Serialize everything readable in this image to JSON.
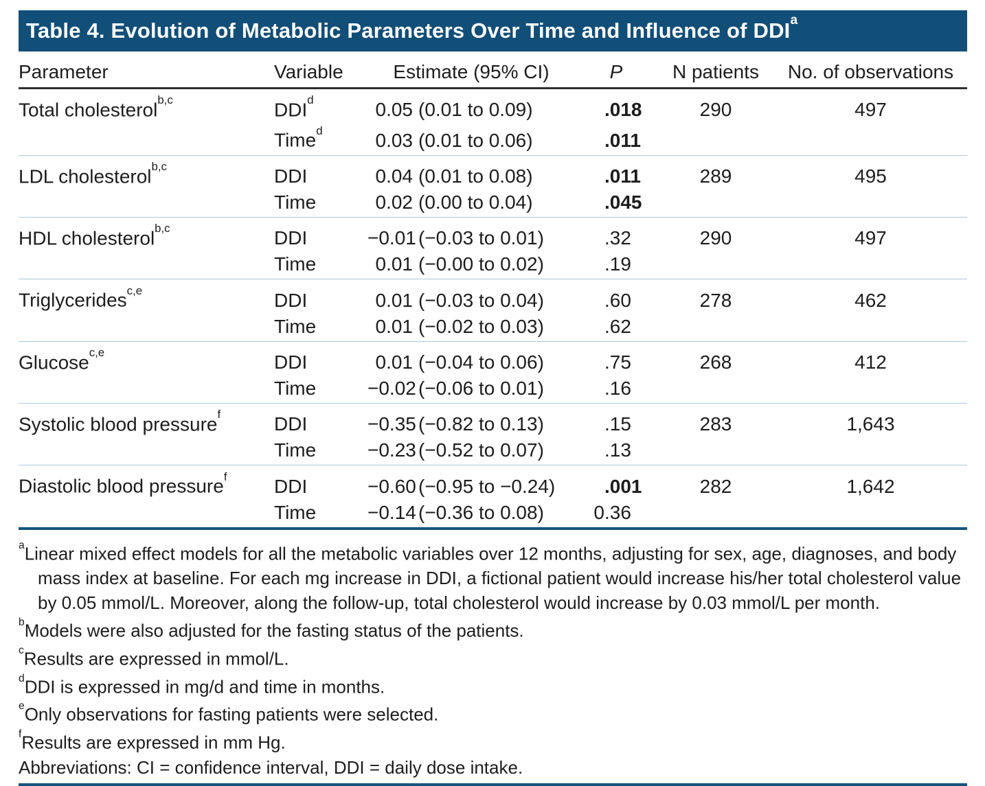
{
  "title": {
    "text": "Table 4. Evolution of Metabolic Parameters Over Time and Influence of DDI",
    "sup": "a"
  },
  "columns": {
    "parameter": "Parameter",
    "variable": "Variable",
    "estimate": "Estimate (95% CI)",
    "p": "P",
    "n_patients": "N patients",
    "observations": "No. of observations"
  },
  "table": {
    "groups": [
      {
        "parameter": "Total cholesterol",
        "parameter_sup": "b,c",
        "n_patients": "290",
        "n_observations": "497",
        "rows": [
          {
            "variable": "DDI",
            "variable_sup": "d",
            "est_value": "0.05",
            "est_ci": "(0.01 to 0.09)",
            "p_int": "",
            "p_frac": ".018",
            "p_bold": true
          },
          {
            "variable": "Time",
            "variable_sup": "d",
            "est_value": "0.03",
            "est_ci": "(0.01 to 0.06)",
            "p_int": "",
            "p_frac": ".011",
            "p_bold": true
          }
        ]
      },
      {
        "parameter": "LDL cholesterol",
        "parameter_sup": "b,c",
        "n_patients": "289",
        "n_observations": "495",
        "rows": [
          {
            "variable": "DDI",
            "variable_sup": "",
            "est_value": "0.04",
            "est_ci": "(0.01 to 0.08)",
            "p_int": "",
            "p_frac": ".011",
            "p_bold": true
          },
          {
            "variable": "Time",
            "variable_sup": "",
            "est_value": "0.02",
            "est_ci": "(0.00 to 0.04)",
            "p_int": "",
            "p_frac": ".045",
            "p_bold": true
          }
        ]
      },
      {
        "parameter": "HDL cholesterol",
        "parameter_sup": "b,c",
        "n_patients": "290",
        "n_observations": "497",
        "rows": [
          {
            "variable": "DDI",
            "variable_sup": "",
            "est_value": "−0.01",
            "est_ci": "(−0.03 to 0.01)",
            "p_int": "",
            "p_frac": ".32",
            "p_bold": false
          },
          {
            "variable": "Time",
            "variable_sup": "",
            "est_value": "0.01",
            "est_ci": "(−0.00 to 0.02)",
            "p_int": "",
            "p_frac": ".19",
            "p_bold": false
          }
        ]
      },
      {
        "parameter": "Triglycerides",
        "parameter_sup": "c,e",
        "n_patients": "278",
        "n_observations": "462",
        "rows": [
          {
            "variable": "DDI",
            "variable_sup": "",
            "est_value": "0.01",
            "est_ci": "(−0.03 to 0.04)",
            "p_int": "",
            "p_frac": ".60",
            "p_bold": false
          },
          {
            "variable": "Time",
            "variable_sup": "",
            "est_value": "0.01",
            "est_ci": "(−0.02 to 0.03)",
            "p_int": "",
            "p_frac": ".62",
            "p_bold": false
          }
        ]
      },
      {
        "parameter": "Glucose",
        "parameter_sup": "c,e",
        "n_patients": "268",
        "n_observations": "412",
        "rows": [
          {
            "variable": "DDI",
            "variable_sup": "",
            "est_value": "0.01",
            "est_ci": "(−0.04 to 0.06)",
            "p_int": "",
            "p_frac": ".75",
            "p_bold": false
          },
          {
            "variable": "Time",
            "variable_sup": "",
            "est_value": "−0.02",
            "est_ci": "(−0.06 to 0.01)",
            "p_int": "",
            "p_frac": ".16",
            "p_bold": false
          }
        ]
      },
      {
        "parameter": "Systolic blood pressure",
        "parameter_sup": "f",
        "n_patients": "283",
        "n_observations": "1,643",
        "rows": [
          {
            "variable": "DDI",
            "variable_sup": "",
            "est_value": "−0.35",
            "est_ci": "(−0.82 to 0.13)",
            "p_int": "",
            "p_frac": ".15",
            "p_bold": false
          },
          {
            "variable": "Time",
            "variable_sup": "",
            "est_value": "−0.23",
            "est_ci": "(−0.52 to 0.07)",
            "p_int": "",
            "p_frac": ".13",
            "p_bold": false
          }
        ]
      },
      {
        "parameter": "Diastolic blood pressure",
        "parameter_sup": "f",
        "n_patients": "282",
        "n_observations": "1,642",
        "rows": [
          {
            "variable": "DDI",
            "variable_sup": "",
            "est_value": "−0.60",
            "est_ci": "(−0.95 to −0.24)",
            "p_int": "",
            "p_frac": ".001",
            "p_bold": true
          },
          {
            "variable": "Time",
            "variable_sup": "",
            "est_value": "−0.14",
            "est_ci": "(−0.36 to 0.08)",
            "p_int": "0",
            "p_frac": ".36",
            "p_bold": false
          }
        ]
      }
    ]
  },
  "footnotes": [
    {
      "sup": "a",
      "text": "Linear mixed effect models for all the metabolic variables over 12 months, adjusting for sex, age, diagnoses, and body mass index at baseline. For each mg increase in DDI, a fictional patient would increase his/her total cholesterol value by 0.05 mmol/L. Moreover, along the follow-up, total cholesterol would increase by 0.03 mmol/L per month."
    },
    {
      "sup": "b",
      "text": "Models were also adjusted for the fasting status of the patients."
    },
    {
      "sup": "c",
      "text": "Results are expressed in mmol/L."
    },
    {
      "sup": "d",
      "text": "DDI is expressed in mg/d and time in months."
    },
    {
      "sup": "e",
      "text": "Only observations for fasting patients were selected."
    },
    {
      "sup": "f",
      "text": "Results are expressed in mm Hg."
    },
    {
      "sup": "",
      "text": "Abbreviations: CI = confidence interval, DDI = daily dose intake."
    }
  ],
  "colors": {
    "navy": "#114e78",
    "rule_navy": "#15547f",
    "separator": "#abc8e1",
    "header_rule": "#2e2e2e",
    "text": "#1d1d1d",
    "title_text": "#ffffff"
  }
}
